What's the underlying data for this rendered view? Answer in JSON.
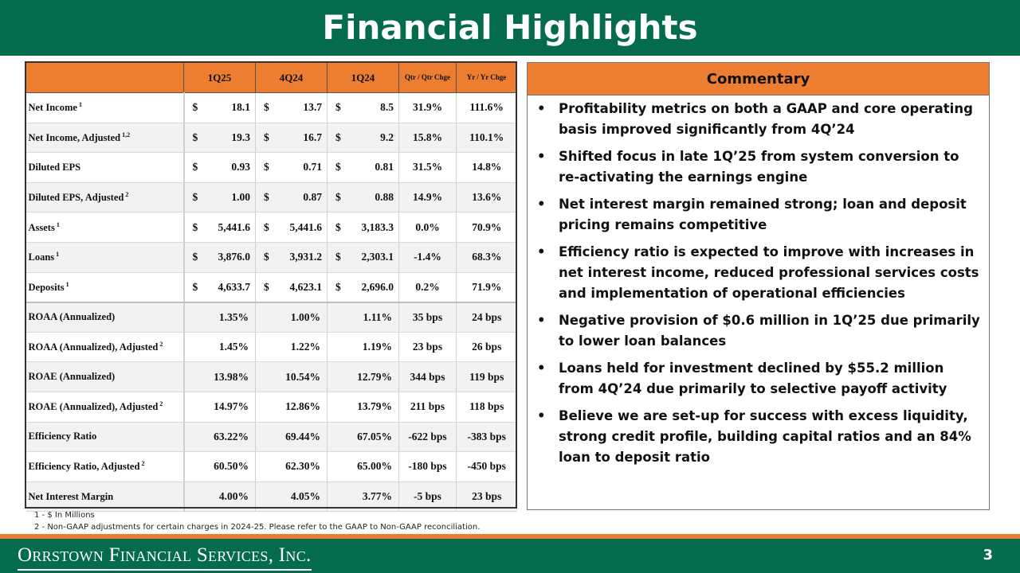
{
  "title": "Financial Highlights",
  "table": {
    "headers": [
      "1Q25",
      "4Q24",
      "1Q24",
      "Qtr / Qtr Chge",
      "Yr / Yr Chge"
    ],
    "rows": [
      {
        "label": "Net Income",
        "sup": "1",
        "c1": "18.1",
        "c2": "13.7",
        "c3": "8.5",
        "qq": "31.9%",
        "yy": "111.6%"
      },
      {
        "label": "Net Income, Adjusted",
        "sup": "1,2",
        "c1": "19.3",
        "c2": "16.7",
        "c3": "9.2",
        "qq": "15.8%",
        "yy": "110.1%"
      },
      {
        "label": "Diluted EPS",
        "sup": "",
        "c1": "0.93",
        "c2": "0.71",
        "c3": "0.81",
        "qq": "31.5%",
        "yy": "14.8%"
      },
      {
        "label": "Diluted EPS, Adjusted",
        "sup": "2",
        "c1": "1.00",
        "c2": "0.87",
        "c3": "0.88",
        "qq": "14.9%",
        "yy": "13.6%"
      },
      {
        "label": "Assets",
        "sup": "1",
        "c1": "5,441.6",
        "c2": "5,441.6",
        "c3": "3,183.3",
        "qq": "0.0%",
        "yy": "70.9%"
      },
      {
        "label": "Loans",
        "sup": "1",
        "c1": "3,876.0",
        "c2": "3,931.2",
        "c3": "2,303.1",
        "qq": "-1.4%",
        "yy": "68.3%"
      },
      {
        "label": "Deposits",
        "sup": "1",
        "c1": "4,633.7",
        "c2": "4,623.1",
        "c3": "2,696.0",
        "qq": "0.2%",
        "yy": "71.9%"
      },
      {
        "label": "ROAA (Annualized)",
        "sup": "",
        "c1": "1.35%",
        "c2": "1.00%",
        "c3": "1.11%",
        "qq": "35 bps",
        "yy": "24 bps"
      },
      {
        "label": "ROAA (Annualized), Adjusted",
        "sup": "2",
        "c1": "1.45%",
        "c2": "1.22%",
        "c3": "1.19%",
        "qq": "23 bps",
        "yy": "26 bps"
      },
      {
        "label": "ROAE (Annualized)",
        "sup": "",
        "c1": "13.98%",
        "c2": "10.54%",
        "c3": "12.79%",
        "qq": "344 bps",
        "yy": "119 bps"
      },
      {
        "label": "ROAE (Annualized), Adjusted",
        "sup": "2",
        "c1": "14.97%",
        "c2": "12.86%",
        "c3": "13.79%",
        "qq": "211 bps",
        "yy": "118 bps"
      },
      {
        "label": "Efficiency Ratio",
        "sup": "",
        "c1": "63.22%",
        "c2": "69.44%",
        "c3": "67.05%",
        "qq": "-622 bps",
        "yy": "-383 bps"
      },
      {
        "label": "Efficiency Ratio, Adjusted",
        "sup": "2",
        "c1": "60.50%",
        "c2": "62.30%",
        "c3": "65.00%",
        "qq": "-180 bps",
        "yy": "-450 bps"
      },
      {
        "label": "Net Interest Margin",
        "sup": "",
        "c1": "4.00%",
        "c2": "4.05%",
        "c3": "3.77%",
        "qq": "-5 bps",
        "yy": "23 bps"
      }
    ]
  },
  "footnotes": [
    "1 - $ In Millions",
    "2 - Non-GAAP adjustments for certain charges in 2024-25. Please refer to the GAAP to Non-GAAP reconciliation."
  ],
  "commentary": {
    "title": "Commentary",
    "bullets": [
      "Profitability metrics on both a GAAP and core operating basis improved significantly from 4Q’24",
      "Shifted focus in late 1Q’25 from system conversion to re-activating the earnings engine",
      "Net interest margin remained strong; loan and deposit pricing remains competitive",
      "Efficiency ratio is expected to improve with increases in net interest income, reduced professional services costs and implementation of operational efficiencies",
      "Negative provision of $0.6 million in 1Q’25 due primarily to lower loan balances",
      "Loans held for investment declined by $55.2 million from 4Q’24 due primarily to selective payoff activity",
      "Believe we are set-up for success with excess liquidity, strong credit profile, building capital ratios and an 84% loan to deposit ratio"
    ]
  },
  "footer": {
    "logo_text": "Orrstown Financial Services, Inc.",
    "page_number": "3"
  },
  "colors": {
    "brand_green": "#046b4d",
    "accent_orange": "#ed7d31"
  }
}
